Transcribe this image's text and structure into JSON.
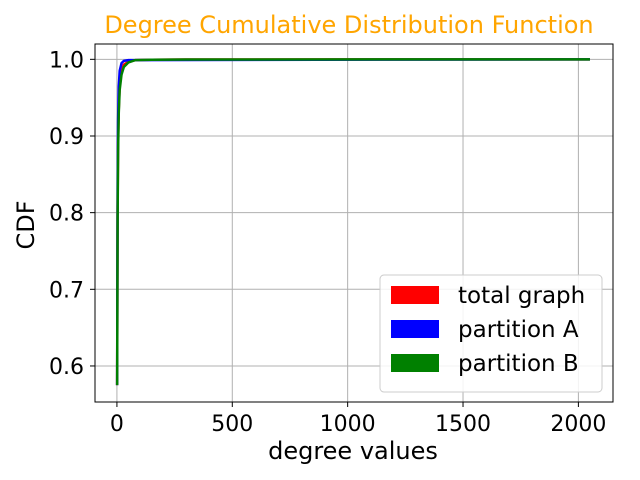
{
  "chart_data": {
    "type": "line",
    "title": "Degree Cumulative Distribution Function",
    "xlabel": "degree values",
    "ylabel": "CDF",
    "xlim": [
      -95,
      2150
    ],
    "ylim": [
      0.553,
      1.02
    ],
    "xticks": [
      0,
      500,
      1000,
      1500,
      2000
    ],
    "yticks": [
      0.6,
      0.7,
      0.8,
      0.9,
      1.0
    ],
    "xtick_labels": [
      "0",
      "500",
      "1000",
      "1500",
      "2000"
    ],
    "ytick_labels": [
      "0.6",
      "0.7",
      "0.8",
      "0.9",
      "1.0"
    ],
    "grid": true,
    "legend_position": "lower-right",
    "series": [
      {
        "name": "total graph",
        "color": "#ff0000",
        "x": [
          1,
          2,
          3,
          5,
          8,
          12,
          20,
          30,
          50,
          80,
          150,
          300,
          2050
        ],
        "y": [
          0.575,
          0.7,
          0.8,
          0.89,
          0.935,
          0.965,
          0.985,
          0.993,
          0.997,
          0.999,
          0.9995,
          0.9998,
          1.0
        ]
      },
      {
        "name": "partition A",
        "color": "#0000ff",
        "x": [
          1,
          2,
          3,
          5,
          8,
          12,
          20,
          30,
          50,
          2050
        ],
        "y": [
          0.575,
          0.72,
          0.83,
          0.92,
          0.965,
          0.985,
          0.995,
          0.998,
          0.999,
          1.0
        ]
      },
      {
        "name": "partition B",
        "color": "#008000",
        "x": [
          1,
          2,
          3,
          5,
          8,
          12,
          20,
          30,
          50,
          80,
          150,
          300,
          2050
        ],
        "y": [
          0.575,
          0.69,
          0.79,
          0.88,
          0.93,
          0.96,
          0.98,
          0.99,
          0.996,
          0.999,
          0.9995,
          0.9998,
          1.0
        ]
      }
    ]
  }
}
